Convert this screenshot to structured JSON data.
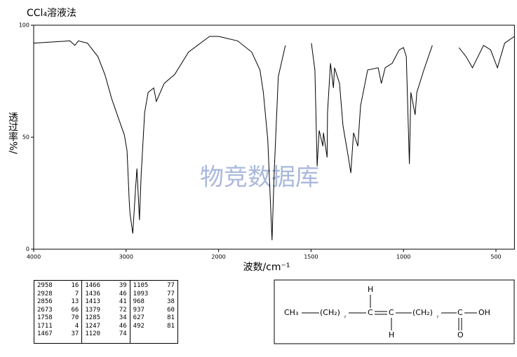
{
  "chart_data": {
    "type": "line",
    "title": "CCl₄溶液法",
    "x_label": "波数/cm⁻¹",
    "y_label": "透过率%/",
    "watermark": "物竞数据库",
    "color": "#000000",
    "xlim": [
      4000,
      400
    ],
    "xticks": [
      4000,
      3000,
      2000,
      1500,
      1000,
      500
    ],
    "ylim": [
      0,
      100
    ],
    "yticks": [
      0,
      50,
      100
    ],
    "x": [
      4000,
      3608,
      3555,
      3517,
      3419,
      3306,
      3230,
      3155,
      3079,
      3019,
      2990,
      2966,
      2958,
      2928,
      2898,
      2883,
      2856,
      2838,
      2800,
      2762,
      2702,
      2673,
      2589,
      2475,
      2325,
      2098,
      2000,
      1897,
      1821,
      1776,
      1758,
      1734,
      1711,
      1700,
      1677,
      1639,
      1570,
      1498,
      1479,
      1467,
      1456,
      1436,
      1433,
      1413,
      1411,
      1395,
      1379,
      1373,
      1346,
      1327,
      1300,
      1285,
      1270,
      1247,
      1232,
      1194,
      1137,
      1120,
      1099,
      1061,
      1023,
      1000,
      985,
      968,
      960,
      937,
      928,
      890,
      844,
      770,
      700,
      662,
      627,
      567,
      529,
      492,
      453,
      400
    ],
    "values": [
      92,
      93,
      91,
      93,
      92,
      86,
      78,
      67,
      58,
      51,
      44,
      21,
      16,
      7,
      27,
      36,
      13,
      33,
      61,
      70,
      72,
      66,
      74,
      78,
      88,
      95,
      95,
      93,
      88,
      80,
      70,
      49,
      4,
      33,
      77,
      91,
      null,
      92,
      80,
      37,
      53,
      46,
      52,
      41,
      61,
      83,
      72,
      81,
      74,
      55,
      42,
      34,
      52,
      46,
      64,
      80,
      81,
      74,
      81,
      83,
      89,
      90,
      86,
      38,
      70,
      60,
      70,
      80,
      91,
      null,
      90,
      86,
      81,
      91,
      89,
      81,
      92,
      95
    ]
  },
  "peak_table": [
    [
      [
        2958,
        16
      ],
      [
        2928,
        7
      ],
      [
        2856,
        13
      ],
      [
        2673,
        66
      ],
      [
        1758,
        70
      ],
      [
        1711,
        4
      ],
      [
        1467,
        37
      ]
    ],
    [
      [
        1466,
        39
      ],
      [
        1436,
        46
      ],
      [
        1413,
        41
      ],
      [
        1379,
        72
      ],
      [
        1285,
        34
      ],
      [
        1247,
        46
      ],
      [
        1120,
        74
      ]
    ],
    [
      [
        1105,
        77
      ],
      [
        1093,
        77
      ],
      [
        968,
        38
      ],
      [
        937,
        60
      ],
      [
        627,
        81
      ],
      [
        492,
        81
      ]
    ]
  ],
  "structure": {
    "ch3": "CH₃",
    "ch2_left": "(CH₂)",
    "n_left": "₇",
    "c1": "C",
    "c2": "C",
    "ch2_right": "(CH₂)",
    "n_right": "₇",
    "c3": "C",
    "oh": "OH",
    "h_top": "H",
    "h_bottom": "H",
    "o": "O"
  }
}
